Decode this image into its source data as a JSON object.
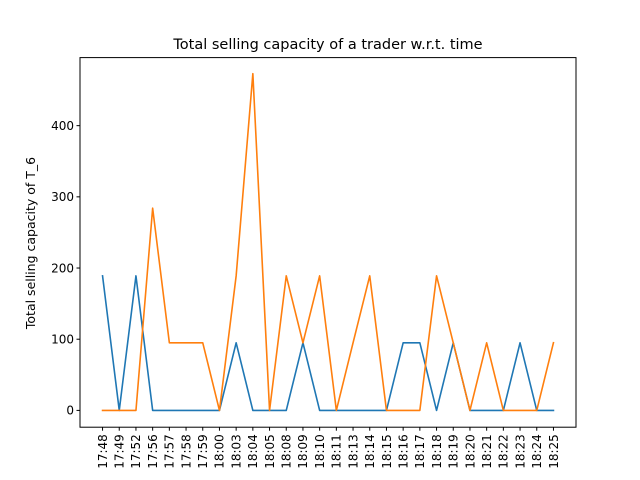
{
  "chart_data": {
    "type": "line",
    "title": "Total selling capacity of a trader w.r.t. time",
    "xlabel": "",
    "ylabel": "Total selling capacity of T_6",
    "categories": [
      "17:48",
      "17:49",
      "17:52",
      "17:56",
      "17:57",
      "17:58",
      "17:59",
      "18:00",
      "18:03",
      "18:04",
      "18:05",
      "18:08",
      "18:09",
      "18:10",
      "18:11",
      "18:13",
      "18:14",
      "18:15",
      "18:16",
      "18:17",
      "18:18",
      "18:19",
      "18:20",
      "18:21",
      "18:22",
      "18:23",
      "18:24",
      "18:25"
    ],
    "yticks": [
      0,
      100,
      200,
      300,
      400
    ],
    "ylim": [
      -23.6,
      495.6
    ],
    "grid": false,
    "series": [
      {
        "color": "#1f77b4",
        "values": [
          189,
          0,
          189,
          0,
          0,
          0,
          0,
          0,
          95,
          0,
          0,
          0,
          95,
          0,
          0,
          0,
          0,
          0,
          95,
          95,
          0,
          95,
          0,
          0,
          0,
          95,
          0,
          0
        ]
      },
      {
        "color": "#ff7f0e",
        "values": [
          0,
          0,
          0,
          284,
          95,
          95,
          95,
          0,
          189,
          473,
          0,
          189,
          95,
          189,
          0,
          95,
          189,
          0,
          0,
          0,
          189,
          95,
          0,
          95,
          0,
          0,
          0,
          95
        ]
      }
    ]
  }
}
